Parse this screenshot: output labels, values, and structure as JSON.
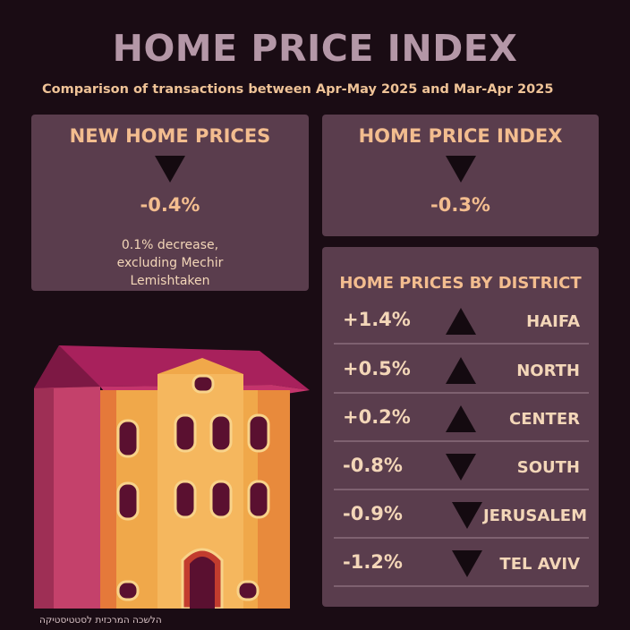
{
  "header": {
    "title": "HOME PRICE INDEX",
    "subtitle": "Comparison of transactions between Apr-May 2025 and Mar-Apr 2025"
  },
  "new_home": {
    "title": "NEW HOME PRICES",
    "direction": "down",
    "value": "-0.4%",
    "note": "0.1% decrease, excluding Mechir Lemishtaken"
  },
  "index": {
    "title": "HOME PRICE INDEX",
    "direction": "down",
    "value": "-0.3%"
  },
  "districts": {
    "title": "HOME PRICES BY DISTRICT",
    "rows": [
      {
        "value": "+1.4%",
        "name": "HAIFA",
        "direction": "up"
      },
      {
        "value": "+0.5%",
        "name": "NORTH",
        "direction": "up"
      },
      {
        "value": "+0.2%",
        "name": "CENTER",
        "direction": "up"
      },
      {
        "value": "-0.8%",
        "name": "SOUTH",
        "direction": "down"
      },
      {
        "value": "-0.9%",
        "name": "JERUSALEM",
        "direction": "down"
      },
      {
        "value": "-1.2%",
        "name": "TEL AVIV",
        "direction": "down"
      }
    ]
  },
  "footer": {
    "source": "הלשכה המרכזית לסטטיסטיקה"
  },
  "colors": {
    "background": "#1a0c14",
    "card": "#5a3d4d",
    "accent": "#f3bd8f",
    "title": "#b497a7"
  },
  "icons": [
    "arrow-down-icon",
    "arrow-up-icon",
    "house-illustration"
  ]
}
